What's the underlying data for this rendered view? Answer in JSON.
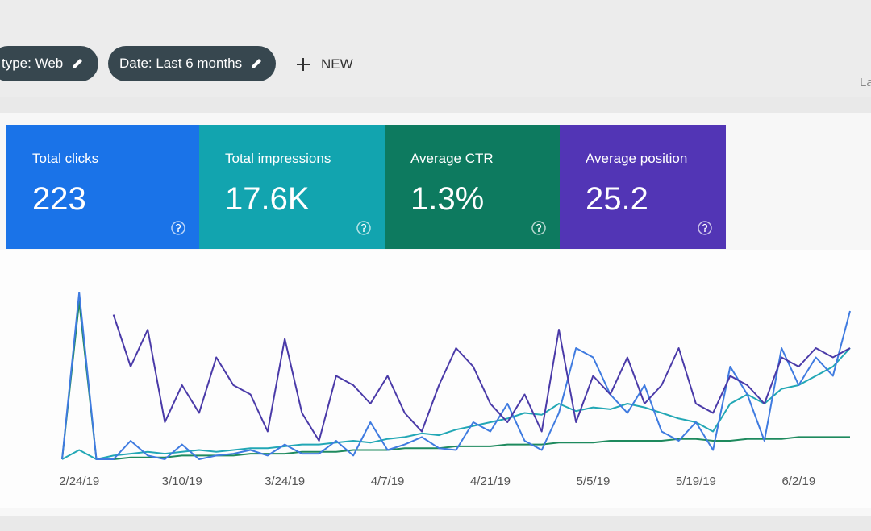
{
  "header": {
    "chips": [
      "type: Web",
      "Date: Last 6 months"
    ],
    "new_button": "NEW",
    "corner_text": "La"
  },
  "cards": [
    {
      "title": "Total clicks",
      "value": "223"
    },
    {
      "title": "Total impressions",
      "value": "17.6K"
    },
    {
      "title": "Average CTR",
      "value": "1.3%"
    },
    {
      "title": "Average position",
      "value": "25.2"
    }
  ],
  "chart_data": {
    "type": "line",
    "categories": [
      null,
      "2/24/19",
      null,
      null,
      null,
      null,
      null,
      "3/10/19",
      null,
      null,
      null,
      null,
      null,
      "3/24/19",
      null,
      null,
      null,
      null,
      null,
      "4/7/19",
      null,
      null,
      null,
      null,
      null,
      "4/21/19",
      null,
      null,
      null,
      null,
      null,
      "5/5/19",
      null,
      null,
      null,
      null,
      null,
      "5/19/19",
      null,
      null,
      null,
      null,
      null,
      "6/2/19",
      null,
      null,
      null
    ],
    "ylim": [
      0,
      100
    ],
    "series": [
      {
        "color": "#4a3aa8",
        "values": [
          null,
          null,
          null,
          78,
          50,
          70,
          20,
          40,
          25,
          55,
          40,
          35,
          15,
          65,
          25,
          10,
          45,
          40,
          30,
          45,
          25,
          15,
          40,
          60,
          50,
          30,
          20,
          35,
          15,
          70,
          20,
          45,
          35,
          55,
          30,
          40,
          60,
          30,
          25,
          45,
          40,
          30,
          55,
          50,
          60,
          55,
          60
        ]
      },
      {
        "color": "#3f7be0",
        "values": [
          0,
          90,
          0,
          0,
          10,
          2,
          0,
          8,
          0,
          2,
          3,
          5,
          2,
          8,
          3,
          3,
          10,
          2,
          20,
          5,
          8,
          12,
          6,
          5,
          20,
          15,
          30,
          10,
          5,
          25,
          60,
          55,
          35,
          25,
          40,
          15,
          10,
          20,
          5,
          50,
          35,
          10,
          60,
          40,
          55,
          45,
          80
        ]
      },
      {
        "color": "#22a7b5",
        "values": [
          0,
          5,
          0,
          2,
          3,
          4,
          3,
          4,
          5,
          4,
          5,
          6,
          6,
          7,
          8,
          8,
          9,
          10,
          9,
          11,
          12,
          14,
          13,
          16,
          18,
          20,
          22,
          25,
          24,
          30,
          26,
          28,
          27,
          30,
          28,
          25,
          22,
          20,
          15,
          30,
          35,
          30,
          38,
          40,
          45,
          50,
          60
        ]
      },
      {
        "color": "#1e8a5e",
        "values": [
          0,
          85,
          0,
          0,
          1,
          1,
          1,
          2,
          2,
          2,
          2,
          3,
          3,
          3,
          4,
          4,
          4,
          5,
          5,
          5,
          6,
          6,
          6,
          7,
          7,
          7,
          8,
          8,
          8,
          9,
          9,
          9,
          10,
          10,
          10,
          10,
          11,
          11,
          10,
          10,
          11,
          11,
          11,
          12,
          12,
          12,
          12
        ]
      }
    ]
  }
}
